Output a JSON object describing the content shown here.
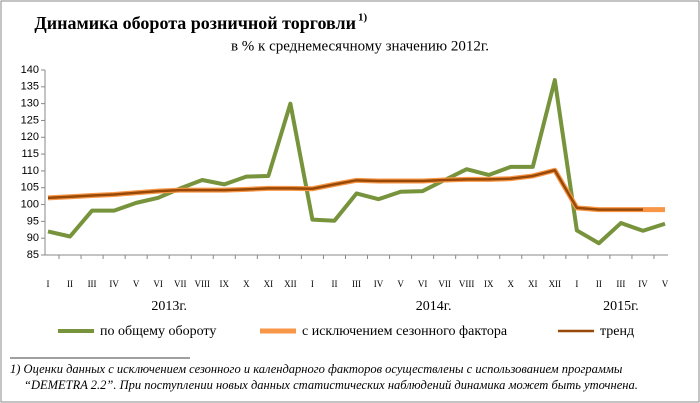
{
  "chart_data": {
    "type": "line",
    "title": "Динамика оборота розничной торговли",
    "title_note": "1)",
    "subtitle": "в % к среднемесячному значению 2012г.",
    "categories": [
      "I",
      "II",
      "III",
      "IV",
      "V",
      "VI",
      "VII",
      "VIII",
      "IX",
      "X",
      "XI",
      "XII",
      "I",
      "II",
      "III",
      "IV",
      "V",
      "VI",
      "VII",
      "VIII",
      "IX",
      "X",
      "XI",
      "XII",
      "I",
      "II",
      "III",
      "IV",
      "V"
    ],
    "year_labels": [
      "2013г.",
      "2014г.",
      "2015г."
    ],
    "series": [
      {
        "name": "по общему обороту",
        "color": "#77933c",
        "width": 4,
        "values": [
          92,
          90.5,
          98.2,
          98.2,
          100.5,
          102,
          104.8,
          107.3,
          106,
          108.3,
          108.5,
          130,
          95.5,
          95.2,
          103.3,
          101.6,
          103.8,
          104,
          107.3,
          110.5,
          108.8,
          111.2,
          111.2,
          137,
          92.3,
          88.5,
          94.5,
          92.2,
          94.3
        ]
      },
      {
        "name": "с исключением  сезонного фактора",
        "color": "#f79646",
        "width": 5,
        "values": [
          102,
          102.3,
          102.7,
          103,
          103.5,
          104,
          104.3,
          104.3,
          104.3,
          104.5,
          104.8,
          104.8,
          104.7,
          106,
          107.2,
          107,
          107,
          107,
          107.3,
          107.5,
          107.5,
          107.7,
          108.5,
          110.2,
          99,
          98.5,
          98.5,
          98.5,
          98.5
        ]
      },
      {
        "name": "тренд",
        "color": "#984807",
        "width": 2.5,
        "values": [
          102,
          102.3,
          102.7,
          103,
          103.5,
          104,
          104.3,
          104.3,
          104.3,
          104.5,
          104.8,
          104.8,
          104.7,
          106,
          107.2,
          107,
          107,
          107,
          107.3,
          107.5,
          107.5,
          107.7,
          108.5,
          110.2,
          99,
          98.5,
          98.5,
          98.5,
          null
        ]
      }
    ],
    "ylim": [
      85,
      140
    ],
    "yticks": [
      85,
      90,
      95,
      100,
      105,
      110,
      115,
      120,
      125,
      130,
      135,
      140
    ],
    "footnote": [
      "1) Оценки данных с исключением сезонного и календарного факторов осуществлены с использованием  программы",
      "“DEMETRA 2.2”. При поступлении новых данных статистических наблюдений динамика может быть уточнена."
    ]
  }
}
